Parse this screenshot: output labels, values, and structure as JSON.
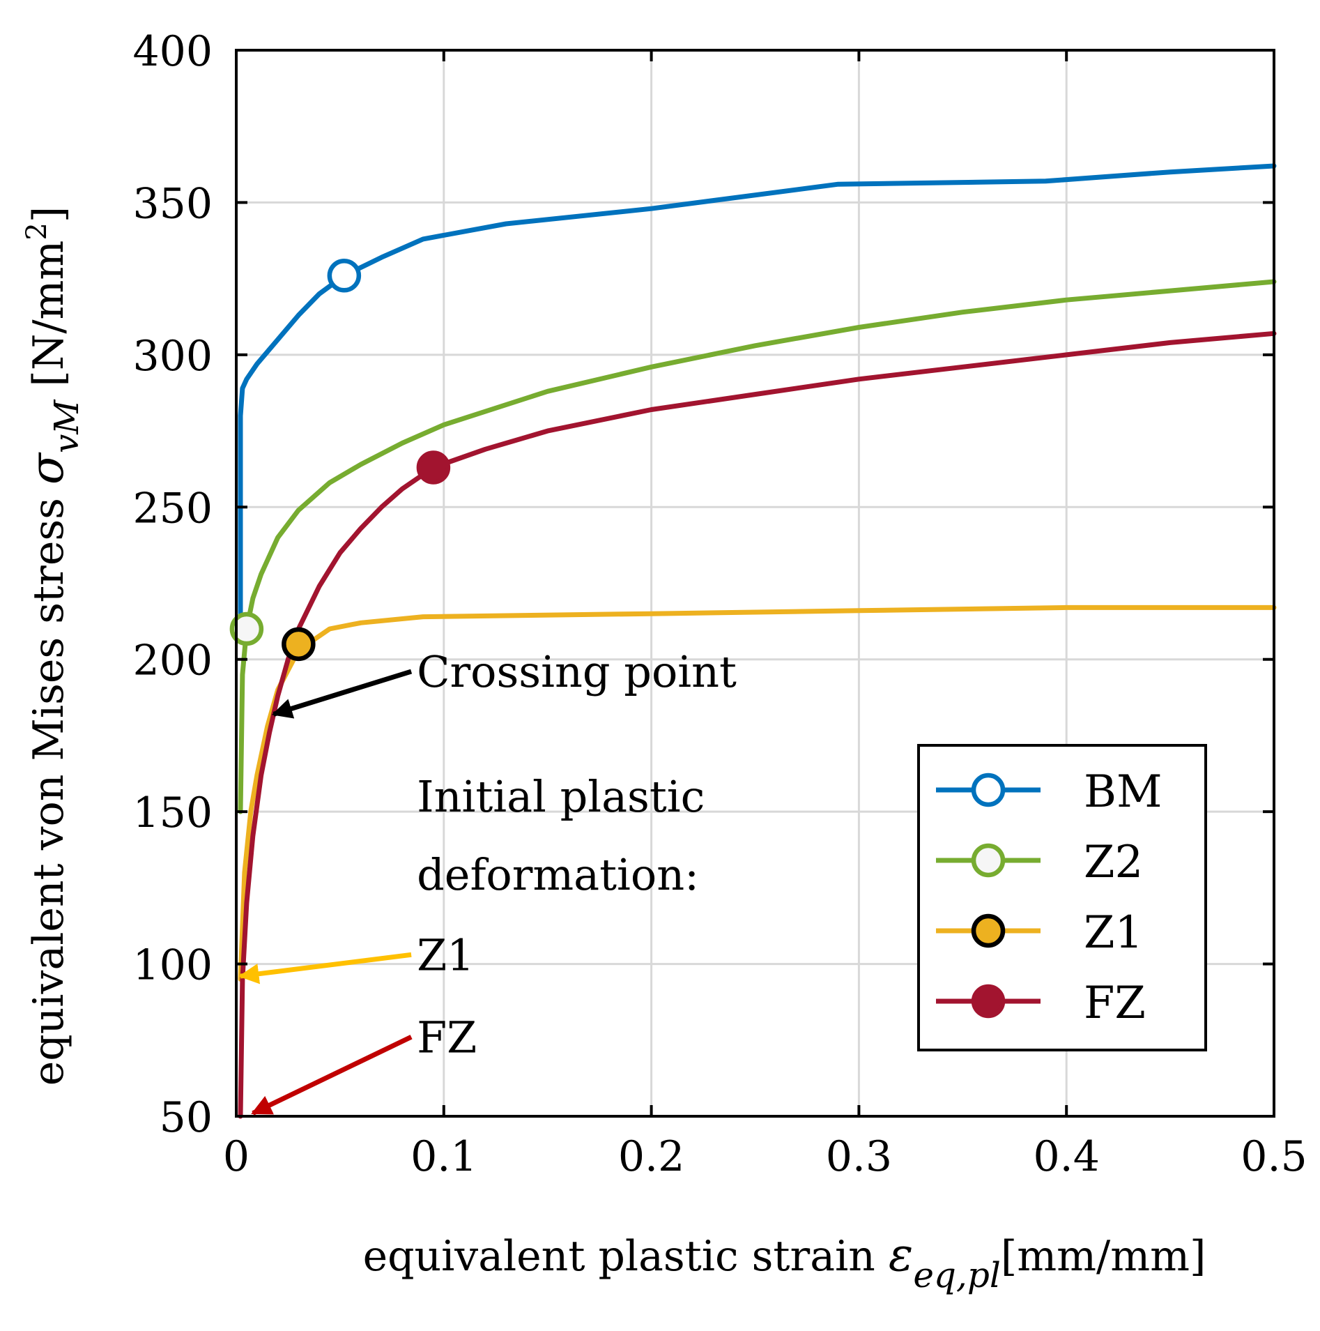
{
  "chart_data": {
    "type": "line",
    "title": "",
    "xlabel": {
      "prefix": "equivalent plastic strain",
      "symbol": "ε",
      "subscript": "eq,pl",
      "unit": "[mm/mm]"
    },
    "ylabel": {
      "prefix": "equivalent von Mises stress",
      "symbol": "σ",
      "subscript": "vM",
      "unit": "[N/mm",
      "unit_sup": "2",
      "unit_close": "]"
    },
    "xlim": [
      0,
      0.5
    ],
    "ylim": [
      50,
      400
    ],
    "xticks": [
      0,
      0.1,
      0.2,
      0.3,
      0.4,
      0.5
    ],
    "xtick_labels": [
      "0",
      "0.1",
      "0.2",
      "0.3",
      "0.4",
      "0.5"
    ],
    "yticks": [
      50,
      100,
      150,
      200,
      250,
      300,
      350,
      400
    ],
    "ytick_labels": [
      "50",
      "100",
      "150",
      "200",
      "250",
      "300",
      "350",
      "400"
    ],
    "grid": true,
    "legend_position": "bottom-right",
    "series": [
      {
        "name": "BM",
        "color": "#0072BD",
        "marker": "open-circle",
        "marker_fill": "#ffffff",
        "marker_stroke": "#0072BD",
        "marker_point": [
          0.052,
          326
        ],
        "x": [
          0.002,
          0.002,
          0.003,
          0.005,
          0.01,
          0.02,
          0.03,
          0.04,
          0.052,
          0.07,
          0.09,
          0.13,
          0.2,
          0.29,
          0.39,
          0.45,
          0.5
        ],
        "y": [
          215,
          280,
          289,
          292,
          297,
          305,
          313,
          320,
          326,
          332,
          338,
          343,
          348,
          356,
          357,
          360,
          362
        ]
      },
      {
        "name": "Z2",
        "color": "#77AC30",
        "marker": "open-circle",
        "marker_fill": "#f6f6f6",
        "marker_stroke": "#77AC30",
        "marker_point": [
          0.005,
          210
        ],
        "x": [
          0.002,
          0.003,
          0.005,
          0.008,
          0.012,
          0.02,
          0.03,
          0.045,
          0.06,
          0.08,
          0.1,
          0.15,
          0.2,
          0.25,
          0.3,
          0.35,
          0.4,
          0.45,
          0.5
        ],
        "y": [
          150,
          195,
          210,
          220,
          228,
          240,
          249,
          258,
          264,
          271,
          277,
          288,
          296,
          303,
          309,
          314,
          318,
          321,
          324
        ]
      },
      {
        "name": "Z1",
        "color": "#EDB120",
        "marker": "filled-circle",
        "marker_fill": "#EDB120",
        "marker_stroke": "#000000",
        "marker_point": [
          0.03,
          205
        ],
        "x": [
          0.002,
          0.004,
          0.007,
          0.01,
          0.015,
          0.02,
          0.03,
          0.045,
          0.06,
          0.09,
          0.2,
          0.3,
          0.4,
          0.5
        ],
        "y": [
          95,
          130,
          150,
          162,
          178,
          190,
          203,
          210,
          212,
          214,
          215,
          216,
          217,
          217
        ]
      },
      {
        "name": "FZ",
        "color": "#A2142F",
        "marker": "filled-circle",
        "marker_fill": "#A2142F",
        "marker_stroke": "#A2142F",
        "marker_point": [
          0.095,
          263
        ],
        "x": [
          0.002,
          0.003,
          0.005,
          0.008,
          0.012,
          0.016,
          0.02,
          0.025,
          0.03,
          0.04,
          0.05,
          0.06,
          0.07,
          0.08,
          0.095,
          0.12,
          0.15,
          0.2,
          0.25,
          0.3,
          0.35,
          0.4,
          0.45,
          0.5
        ],
        "y": [
          50,
          95,
          120,
          142,
          162,
          176,
          188,
          200,
          210,
          224,
          235,
          243,
          250,
          256,
          263,
          269,
          275,
          282,
          287,
          292,
          296,
          300,
          304,
          307
        ]
      }
    ],
    "annotations": {
      "crossing": {
        "text": "Crossing point",
        "color": "#000000",
        "arrow_tip": [
          0.018,
          182
        ],
        "text_at": [
          0.087,
          191
        ]
      },
      "initial_heading": {
        "lines": [
          "Initial plastic",
          "deformation:"
        ],
        "text_at": [
          0.087,
          150
        ]
      },
      "z1": {
        "text": "Z1",
        "color": "#FFC000",
        "arrow_tip": [
          0.002,
          96
        ],
        "text_at": [
          0.087,
          98
        ]
      },
      "fz": {
        "text": "FZ",
        "color": "#C00000",
        "arrow_tip": [
          0.008,
          51
        ],
        "text_at": [
          0.087,
          71
        ]
      }
    }
  }
}
